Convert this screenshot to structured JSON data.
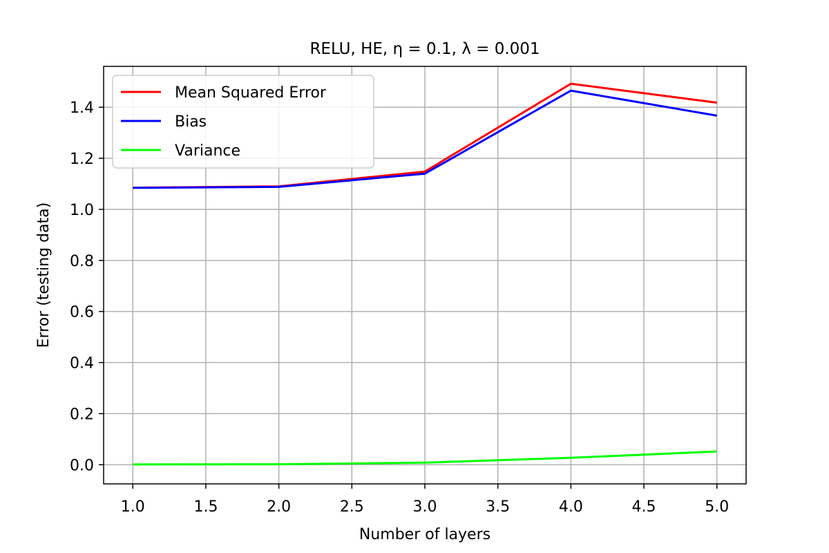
{
  "chart_data": {
    "type": "line",
    "title": "RELU, HE, η = 0.1, λ = 0.001",
    "xlabel": "Number of layers",
    "ylabel": "Error (testing data)",
    "xlim": [
      0.8,
      5.2
    ],
    "ylim": [
      -0.075,
      1.56
    ],
    "xticks": [
      1.0,
      1.5,
      2.0,
      2.5,
      3.0,
      3.5,
      4.0,
      4.5,
      5.0
    ],
    "xtick_labels": [
      "1.0",
      "1.5",
      "2.0",
      "2.5",
      "3.0",
      "3.5",
      "4.0",
      "4.5",
      "5.0"
    ],
    "yticks": [
      0.0,
      0.2,
      0.4,
      0.6,
      0.8,
      1.0,
      1.2,
      1.4
    ],
    "ytick_labels": [
      "0.0",
      "0.2",
      "0.4",
      "0.6",
      "0.8",
      "1.0",
      "1.2",
      "1.4"
    ],
    "grid": true,
    "legend_position": "upper-left",
    "x": [
      1,
      2,
      3,
      4,
      5
    ],
    "series": [
      {
        "name": "Mean Squared Error",
        "color": "#ff0000",
        "values": [
          1.085,
          1.09,
          1.148,
          1.492,
          1.418
        ]
      },
      {
        "name": "Bias",
        "color": "#0000ff",
        "values": [
          1.084,
          1.088,
          1.14,
          1.465,
          1.367
        ]
      },
      {
        "name": "Variance",
        "color": "#00ff00",
        "values": [
          0.001,
          0.002,
          0.008,
          0.027,
          0.052
        ]
      }
    ]
  }
}
